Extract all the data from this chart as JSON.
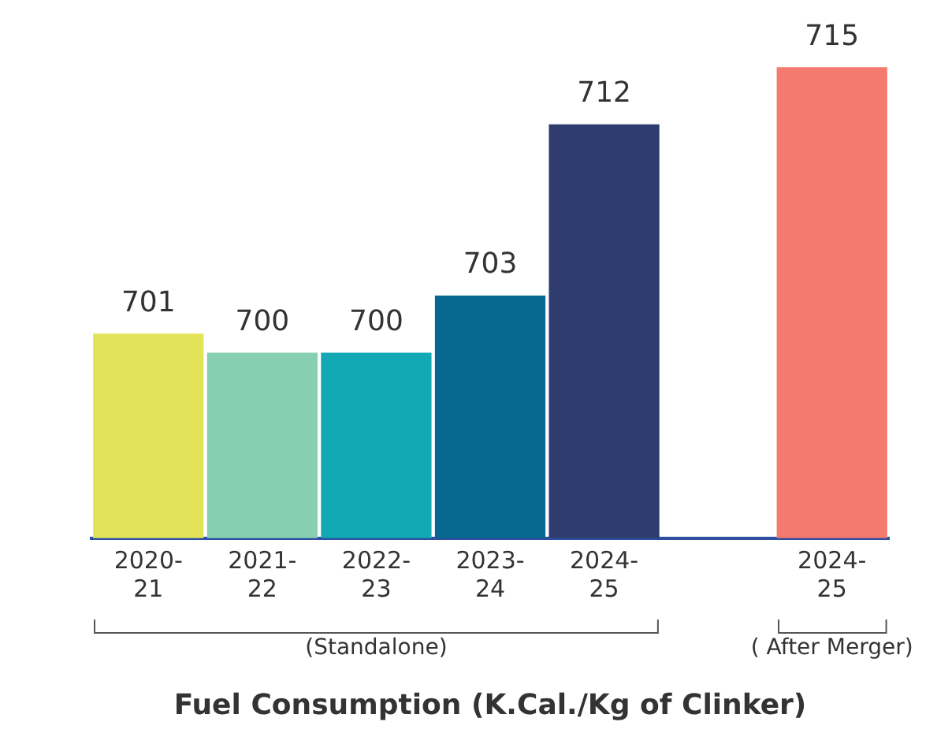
{
  "chart_data": {
    "type": "bar",
    "title": "Fuel Consumption (K.Cal./Kg of Clinker)",
    "categories": [
      "2020-21",
      "2021-22",
      "2022-23",
      "2023-24",
      "2024-25",
      null,
      "2024-25"
    ],
    "values": [
      701,
      700,
      700,
      703,
      712,
      null,
      715
    ],
    "colors": [
      "#e3e35a",
      "#86cfb0",
      "#12a9b5",
      "#07698f",
      "#2e3c6e",
      "#ffffff",
      "#f47a70"
    ],
    "data_labels": true,
    "tick_labels": "x",
    "grid": false,
    "legend": false,
    "annotations": [
      "(Standalone)",
      "( After Merger)"
    ]
  }
}
